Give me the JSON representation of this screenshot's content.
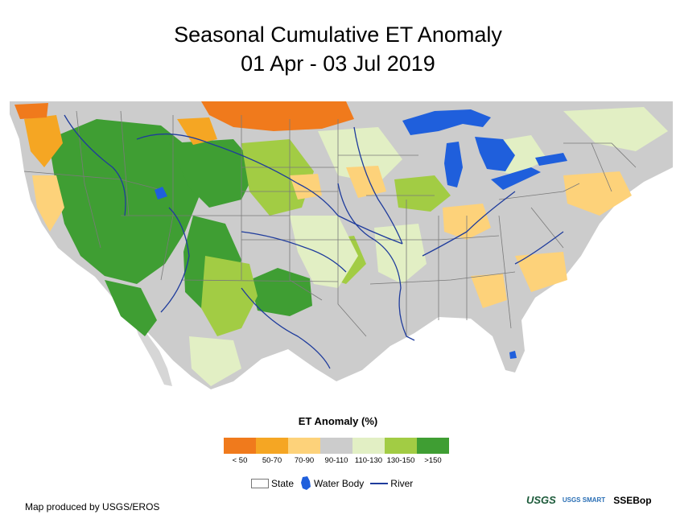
{
  "title": {
    "line1": "Seasonal Cumulative ET Anomaly",
    "line2": "01 Apr - 03 Jul 2019"
  },
  "legend": {
    "title": "ET Anomaly (%)",
    "classes": [
      {
        "label": "< 50",
        "color": "#f07a1c"
      },
      {
        "label": "50-70",
        "color": "#f5a623"
      },
      {
        "label": "70-90",
        "color": "#fdd27a"
      },
      {
        "label": "90-110",
        "color": "#cccccc"
      },
      {
        "label": "110-130",
        "color": "#e2efc4"
      },
      {
        "label": "130-150",
        "color": "#a2cc44"
      },
      {
        "label": ">150",
        "color": "#3f9e33"
      }
    ]
  },
  "reference_legend": {
    "state": "State",
    "water_body": "Water Body",
    "river": "River"
  },
  "colors": {
    "water": "#1f5fdc",
    "river": "#1f3c9c",
    "state_border": "#7a7a7a",
    "mexico_land": "#cccccc"
  },
  "credit": "Map produced by USGS/EROS",
  "logos": {
    "usgs": "USGS",
    "smart": "USGS SMART",
    "ssebop": "SSEBop"
  }
}
